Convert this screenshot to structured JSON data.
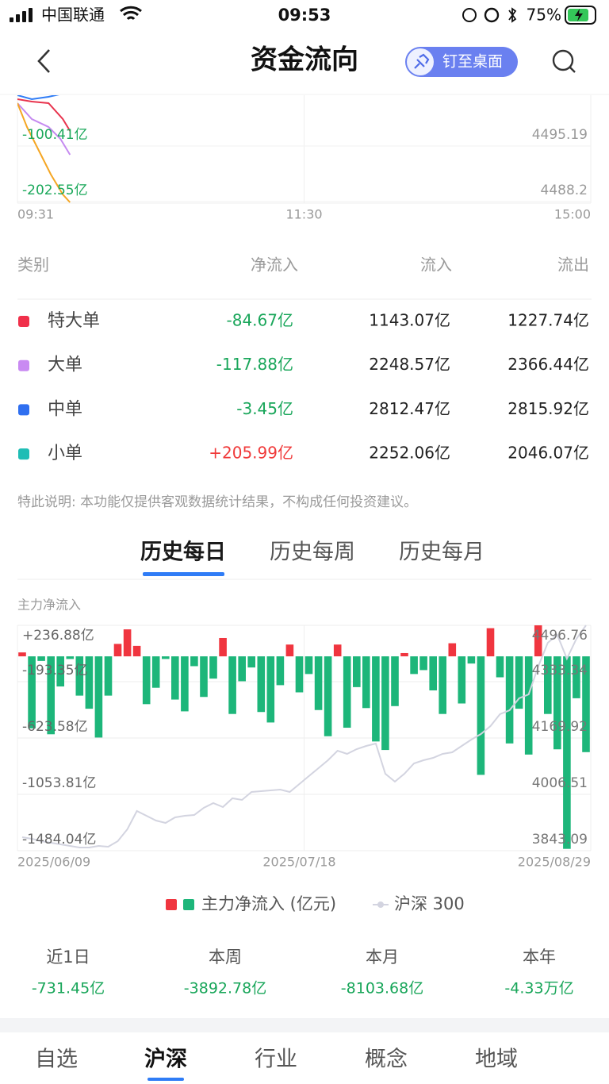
{
  "status_bar": {
    "carrier": "中国联通",
    "time": "09:53",
    "battery": "75%"
  },
  "header": {
    "title": "资金流向",
    "pin_button": "钉至桌面"
  },
  "intraday_chart": {
    "type": "line",
    "xlim": [
      0,
      240
    ],
    "xticks": [
      {
        "value": 0,
        "label": "09:31"
      },
      {
        "value": 120,
        "label": "11:30"
      },
      {
        "value": 240,
        "label": "15:00"
      }
    ],
    "ylim": [
      -205.5,
      -4.1
    ],
    "yticks": [
      {
        "value": -100.41,
        "label": "-100.41亿"
      },
      {
        "value": -202.55,
        "label": "-202.55亿"
      }
    ],
    "y2lim": [
      4488.0,
      4501.78
    ],
    "y2ticks": [
      4495.19,
      4488.2
    ],
    "series": [
      {
        "color": "#e8344e",
        "x": [
          0,
          6,
          13,
          19,
          22
        ],
        "values": [
          -14.3,
          -18.7,
          -21.6,
          -50.8,
          -72.7
        ]
      },
      {
        "color": "#c58af0",
        "x": [
          0,
          6,
          13,
          18,
          22
        ],
        "values": [
          -21.6,
          -50.8,
          -65.4,
          -87.3,
          -116.5
        ]
      },
      {
        "color": "#f5a623",
        "x": [
          0,
          4,
          9,
          14,
          19,
          22
        ],
        "values": [
          -21.6,
          -65.4,
          -109.2,
          -152.9,
          -189.4,
          -204.0
        ]
      },
      {
        "color": "#2f7cf6",
        "x": [
          0,
          6,
          13,
          19
        ],
        "values": [
          -7.0,
          -14.3,
          -9.9,
          -4.1
        ]
      }
    ]
  },
  "flow_table": {
    "columns": [
      "类别",
      "净流入",
      "流入",
      "流出"
    ],
    "rows": [
      {
        "color": "#f0304a",
        "name": "特大单",
        "net": "-84.67亿",
        "inflow": "1143.07亿",
        "outflow": "1227.74亿"
      },
      {
        "color": "#c98af2",
        "name": "大单",
        "net": "-117.88亿",
        "inflow": "2248.57亿",
        "outflow": "2366.44亿"
      },
      {
        "color": "#2f6ff0",
        "name": "中单",
        "net": "-3.45亿",
        "inflow": "2812.47亿",
        "outflow": "2815.92亿"
      },
      {
        "color": "#1fbdb5",
        "name": "小单",
        "net": "+205.99亿",
        "inflow": "2252.06亿",
        "outflow": "2046.07亿"
      }
    ]
  },
  "disclaimer": "特此说明: 本功能仅提供客观数据统计结果，不构成任何投资建议。",
  "tabs": {
    "items": [
      "历史每日",
      "历史每周",
      "历史每月"
    ],
    "active": 0
  },
  "history_chart": {
    "type": "bar",
    "axis_title": "主力净流入",
    "categories": [
      "2025/06/09",
      null,
      null,
      null,
      null,
      null,
      null,
      null,
      null,
      null,
      null,
      null,
      null,
      null,
      null,
      null,
      null,
      null,
      null,
      null,
      null,
      null,
      null,
      null,
      null,
      null,
      null,
      null,
      null,
      "2025/07/18",
      null,
      null,
      null,
      null,
      null,
      null,
      null,
      null,
      null,
      null,
      null,
      null,
      null,
      null,
      null,
      null,
      null,
      null,
      null,
      null,
      null,
      null,
      null,
      null,
      null,
      null,
      null,
      null,
      null,
      "2025/08/29"
    ],
    "ylim": [
      -1484.04,
      236.88
    ],
    "yticks": [
      {
        "value": 236.88,
        "label": "+236.88亿"
      },
      {
        "value": -193.35,
        "label": "-193.35亿"
      },
      {
        "value": -623.58,
        "label": "-623.58亿"
      },
      {
        "value": -1053.81,
        "label": "-1053.81亿"
      },
      {
        "value": -1484.04,
        "label": "-1484.04亿"
      }
    ],
    "y2lim": [
      3843.09,
      4496.76
    ],
    "y2ticks": [
      4496.76,
      4333.34,
      4169.92,
      4006.51,
      3843.09
    ],
    "series": [
      {
        "name": "主力净流入 (亿元)",
        "color": "#1db67a",
        "color_positive": "#f0353f",
        "values": [
          30,
          -550,
          -35,
          -595,
          -230,
          -20,
          -300,
          -400,
          -620,
          -300,
          95,
          206,
          80,
          -365,
          -240,
          -20,
          -330,
          -420,
          -75,
          -310,
          -170,
          140,
          -440,
          -190,
          -85,
          -425,
          -505,
          -220,
          90,
          -275,
          -135,
          -410,
          -610,
          90,
          -545,
          -235,
          -395,
          -650,
          -715,
          -380,
          25,
          -135,
          -105,
          -260,
          -440,
          100,
          -360,
          -55,
          -905,
          215,
          -160,
          -665,
          -400,
          -750,
          236.88,
          -440,
          -710,
          -1470,
          -320,
          -731.45
        ]
      },
      {
        "name": "沪深 300",
        "color": "#d3d4e0",
        "axis": "y2",
        "values": [
          3882.2,
          3877.6,
          3870.7,
          3866.1,
          3861.5,
          3856.9,
          3852.3,
          3852.3,
          3856.9,
          3854.6,
          3870.7,
          3905.3,
          3958.2,
          3944.4,
          3930.6,
          3923.7,
          3939.8,
          3944.4,
          3946.7,
          3967.4,
          3981.2,
          3969.7,
          3995.0,
          3990.4,
          4013.4,
          4015.7,
          4018.0,
          4020.3,
          4013.4,
          4036.5,
          4059.5,
          4082.5,
          4105.5,
          4133.1,
          4123.9,
          4137.7,
          4146.9,
          4153.8,
          4066.4,
          4043.4,
          4066.4,
          4096.3,
          4105.5,
          4112.4,
          4123.9,
          4128.5,
          4146.9,
          4165.4,
          4181.5,
          4204.5,
          4239.0,
          4250.5,
          4285.0,
          4296.6,
          4377.1,
          4446.2,
          4469.2,
          4400.1,
          4457.7,
          4496.76
        ]
      }
    ]
  },
  "summary": [
    {
      "label": "近1日",
      "value": "-731.45亿"
    },
    {
      "label": "本周",
      "value": "-3892.78亿"
    },
    {
      "label": "本月",
      "value": "-8103.68亿"
    },
    {
      "label": "本年",
      "value": "-4.33万亿"
    }
  ],
  "bottom_nav": {
    "items": [
      "自选",
      "沪深",
      "行业",
      "概念",
      "地域"
    ],
    "active": 1
  }
}
